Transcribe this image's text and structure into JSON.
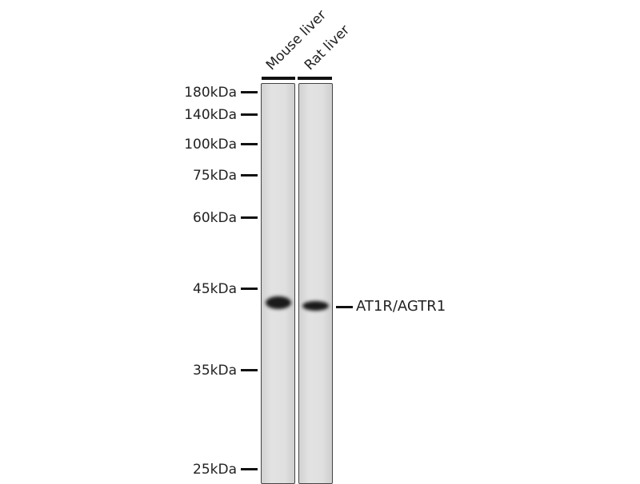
{
  "lanes": [
    {
      "label": "Mouse liver"
    },
    {
      "label": "Rat liver"
    }
  ],
  "markers": [
    "180kDa",
    "140kDa",
    "100kDa",
    "75kDa",
    "60kDa",
    "45kDa",
    "35kDa",
    "25kDa"
  ],
  "target": {
    "label": "AT1R/AGTR1"
  }
}
